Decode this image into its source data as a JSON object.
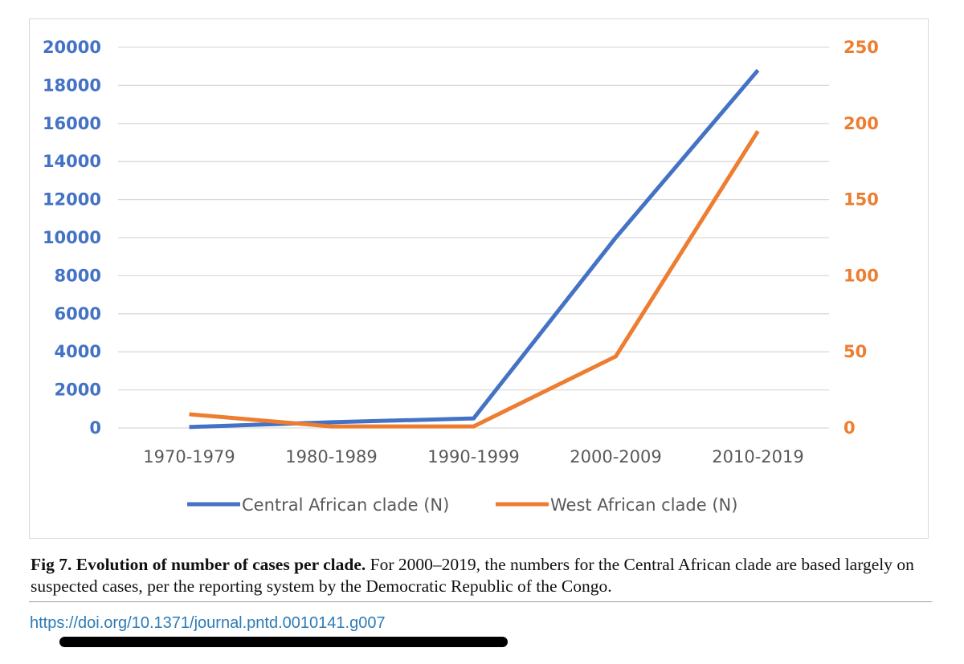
{
  "colors": {
    "central": "#4472c4",
    "west": "#ed7d31",
    "grid": "#d9d9d9",
    "axis_text": "#595959",
    "doi_link": "#2d7bb6"
  },
  "chart_data": {
    "type": "line",
    "categories": [
      "1970-1979",
      "1980-1989",
      "1990-1999",
      "2000-2009",
      "2010-2019"
    ],
    "series": [
      {
        "name": "Central African clade (N)",
        "axis": "left",
        "color": "#4472c4",
        "values": [
          50,
          300,
          500,
          10000,
          18800
        ]
      },
      {
        "name": "West African clade (N)",
        "axis": "right",
        "color": "#ed7d31",
        "values": [
          9,
          1,
          1,
          47,
          195
        ]
      }
    ],
    "y_left": {
      "min": 0,
      "max": 20000,
      "ticks": [
        "0",
        "2000",
        "4000",
        "6000",
        "8000",
        "10000",
        "12000",
        "14000",
        "16000",
        "18000",
        "20000"
      ]
    },
    "y_right": {
      "min": 0,
      "max": 250,
      "ticks": [
        "0",
        "50",
        "100",
        "150",
        "200",
        "250"
      ]
    },
    "grid": true,
    "legend_position": "bottom"
  },
  "caption": {
    "label": "Fig 7.",
    "title": "Evolution of number of cases per clade.",
    "text": "For 2000–2019, the numbers for the Central African clade are based largely on suspected cases, per the reporting system by the Democratic Republic of the Congo."
  },
  "doi": "https://doi.org/10.1371/journal.pntd.0010141.g007"
}
